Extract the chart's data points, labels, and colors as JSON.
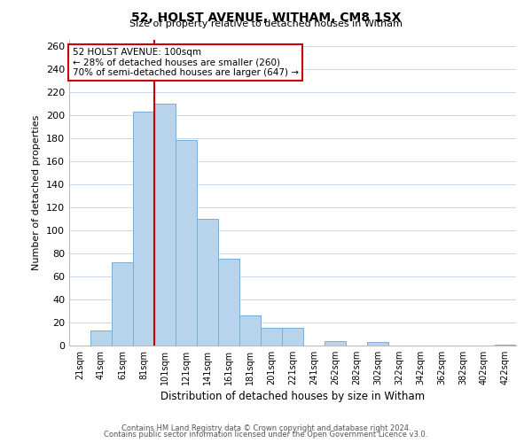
{
  "title": "52, HOLST AVENUE, WITHAM, CM8 1SX",
  "subtitle": "Size of property relative to detached houses in Witham",
  "xlabel": "Distribution of detached houses by size in Witham",
  "ylabel": "Number of detached properties",
  "bar_color": "#b8d4ed",
  "bar_edge_color": "#7aadd4",
  "background_color": "#ffffff",
  "grid_color": "#c8d8ea",
  "annotation_box_edge": "#cc0000",
  "annotation_line_color": "#cc0000",
  "annotation_text": [
    "52 HOLST AVENUE: 100sqm",
    "← 28% of detached houses are smaller (260)",
    "70% of semi-detached houses are larger (647) →"
  ],
  "categories": [
    "21sqm",
    "41sqm",
    "61sqm",
    "81sqm",
    "101sqm",
    "121sqm",
    "141sqm",
    "161sqm",
    "181sqm",
    "201sqm",
    "221sqm",
    "241sqm",
    "262sqm",
    "282sqm",
    "302sqm",
    "322sqm",
    "342sqm",
    "362sqm",
    "382sqm",
    "402sqm",
    "422sqm"
  ],
  "bin_centers": [
    1,
    2,
    3,
    4,
    5,
    6,
    7,
    8,
    9,
    10,
    11,
    12,
    13,
    14,
    15,
    16,
    17,
    18,
    19,
    20,
    21
  ],
  "red_line_x": 4.5,
  "values": [
    0,
    13,
    72,
    203,
    210,
    178,
    110,
    75,
    26,
    15,
    15,
    0,
    4,
    0,
    3,
    0,
    0,
    0,
    0,
    0,
    1
  ],
  "ylim": [
    0,
    265
  ],
  "yticks": [
    0,
    20,
    40,
    60,
    80,
    100,
    120,
    140,
    160,
    180,
    200,
    220,
    240,
    260
  ],
  "footer_lines": [
    "Contains HM Land Registry data © Crown copyright and database right 2024.",
    "Contains public sector information licensed under the Open Government Licence v3.0."
  ]
}
